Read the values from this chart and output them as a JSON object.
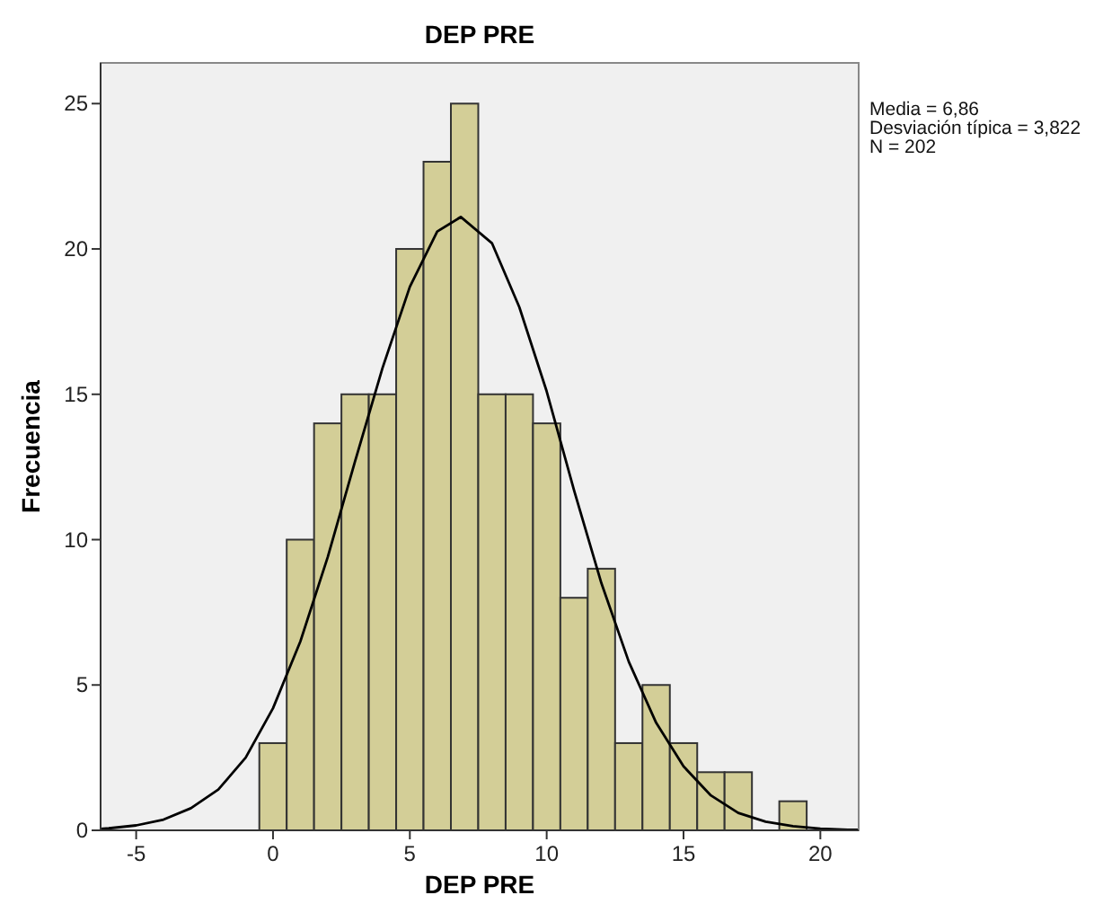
{
  "chart_data": {
    "type": "histogram",
    "title": "DEP PRE",
    "xlabel": "DEP PRE",
    "ylabel": "Frecuencia",
    "bins": [
      -0.5,
      0.5,
      1.5,
      2.5,
      3.5,
      4.5,
      5.5,
      6.5,
      7.5,
      8.5,
      9.5,
      10.5,
      11.5,
      12.5,
      13.5,
      14.5,
      15.5,
      16.5,
      17.5,
      18.5,
      19.5
    ],
    "values": [
      3,
      10,
      14,
      15,
      15,
      20,
      23,
      25,
      15,
      15,
      14,
      8,
      9,
      3,
      5,
      3,
      2,
      2,
      0,
      1
    ],
    "color": "#d3ce97",
    "series": [
      {
        "type": "line",
        "color": "#000000",
        "x": [
          -6.3,
          -6,
          -5,
          -4,
          -3,
          -2,
          -1,
          0,
          1,
          2,
          3,
          4,
          5,
          6,
          6.86,
          8,
          9,
          10,
          11,
          12,
          13,
          14,
          15,
          16,
          17,
          18,
          19,
          20,
          21,
          21.4
        ],
        "values": [
          0.05,
          0.07,
          0.17,
          0.37,
          0.76,
          1.4,
          2.5,
          4.2,
          6.5,
          9.4,
          12.7,
          15.9,
          18.7,
          20.6,
          21.1,
          20.2,
          18.0,
          15.1,
          11.7,
          8.5,
          5.8,
          3.7,
          2.2,
          1.2,
          0.6,
          0.3,
          0.14,
          0.06,
          0.02,
          0.02
        ]
      }
    ],
    "xlim": [
      -6.3,
      21.4
    ],
    "xticks": [
      -5,
      0,
      5,
      10,
      15,
      20
    ],
    "ylim": [
      0,
      26.4
    ],
    "yticks": [
      0,
      5,
      10,
      15,
      20,
      25
    ],
    "annotations": [
      "Media = 6,86",
      "Desviación típica = 3,822",
      "N = 202"
    ]
  }
}
